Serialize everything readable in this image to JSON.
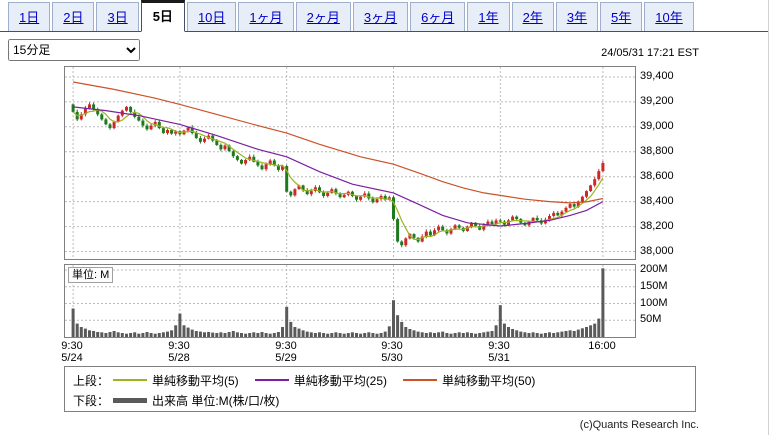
{
  "tabs": {
    "items": [
      {
        "label": "1日",
        "selected": false
      },
      {
        "label": "2日",
        "selected": false
      },
      {
        "label": "3日",
        "selected": false
      },
      {
        "label": "5日",
        "selected": true
      },
      {
        "label": "10日",
        "selected": false
      },
      {
        "label": "1ヶ月",
        "selected": false
      },
      {
        "label": "2ヶ月",
        "selected": false
      },
      {
        "label": "3ヶ月",
        "selected": false
      },
      {
        "label": "6ヶ月",
        "selected": false
      },
      {
        "label": "1年",
        "selected": false
      },
      {
        "label": "2年",
        "selected": false
      },
      {
        "label": "3年",
        "selected": false
      },
      {
        "label": "5年",
        "selected": false
      },
      {
        "label": "10年",
        "selected": false
      }
    ]
  },
  "controls": {
    "timeframe_value": "15分足"
  },
  "timestamp": "24/05/31 17:21 EST",
  "copyright": "(c)Quants Research Inc.",
  "legend": {
    "upper_prefix": "上段：",
    "lower_prefix": "下段：",
    "ma_labels": [
      "単純移動平均(5)",
      "単純移動平均(25)",
      "単純移動平均(50)"
    ],
    "volume_label": "出来高 単位:M(株/口/枚)"
  },
  "chart_data": {
    "type": "candlestick_with_volume",
    "timeframe": "15分足",
    "unit_label": "単位: M",
    "y_axis": {
      "min": 37940,
      "max": 39480,
      "ticks": [
        {
          "value": 39400,
          "label": "39,400"
        },
        {
          "value": 39200,
          "label": "39,200"
        },
        {
          "value": 39000,
          "label": "39,000"
        },
        {
          "value": 38800,
          "label": "38,800"
        },
        {
          "value": 38600,
          "label": "38,600"
        },
        {
          "value": 38400,
          "label": "38,400"
        },
        {
          "value": 38200,
          "label": "38,200"
        },
        {
          "value": 38000,
          "label": "38,000"
        }
      ]
    },
    "volume_axis": {
      "max": 215,
      "ticks": [
        {
          "value": 200,
          "label": "200M"
        },
        {
          "value": 150,
          "label": "150M"
        },
        {
          "value": 100,
          "label": "100M"
        },
        {
          "value": 50,
          "label": "50M"
        }
      ]
    },
    "x_labels": [
      {
        "index": 0,
        "time": "9:30",
        "date": "5/24"
      },
      {
        "index": 26,
        "time": "9:30",
        "date": "5/28"
      },
      {
        "index": 52,
        "time": "9:30",
        "date": "5/29"
      },
      {
        "index": 78,
        "time": "9:30",
        "date": "5/30"
      },
      {
        "index": 104,
        "time": "9:30",
        "date": "5/31"
      },
      {
        "index": 129,
        "time": "16:00",
        "date": ""
      }
    ],
    "day_start_indices": [
      0,
      26,
      52,
      78,
      104
    ],
    "candle_colors": {
      "up": "#cc2a2a",
      "down": "#1f7a1f"
    },
    "volume_color": "#5a5a5a",
    "first_open": 39180,
    "closes": [
      39120,
      39060,
      39100,
      39150,
      39180,
      39140,
      39100,
      39060,
      39020,
      38990,
      39040,
      39090,
      39130,
      39160,
      39120,
      39080,
      39050,
      39010,
      38980,
      39010,
      39040,
      38990,
      38950,
      38975,
      38945,
      38965,
      38940,
      38970,
      38995,
      38950,
      38910,
      38880,
      38905,
      38930,
      38890,
      38855,
      38820,
      38850,
      38805,
      38765,
      38735,
      38705,
      38735,
      38760,
      38720,
      38690,
      38660,
      38700,
      38730,
      38690,
      38655,
      38685,
      38480,
      38450,
      38500,
      38530,
      38490,
      38460,
      38485,
      38515,
      38475,
      38445,
      38470,
      38500,
      38465,
      38435,
      38455,
      38480,
      38445,
      38415,
      38440,
      38465,
      38425,
      38395,
      38420,
      38445,
      38415,
      38435,
      38260,
      38080,
      38050,
      38105,
      38140,
      38110,
      38080,
      38120,
      38160,
      38130,
      38170,
      38200,
      38170,
      38145,
      38180,
      38210,
      38190,
      38165,
      38200,
      38230,
      38205,
      38175,
      38210,
      38240,
      38220,
      38250,
      38240,
      38215,
      38250,
      38280,
      38260,
      38230,
      38210,
      38240,
      38270,
      38250,
      38225,
      38255,
      38285,
      38310,
      38290,
      38320,
      38350,
      38380,
      38360,
      38400,
      38440,
      38485,
      38530,
      38580,
      38645,
      38710
    ],
    "volumes": [
      85,
      40,
      30,
      25,
      20,
      18,
      15,
      14,
      12,
      15,
      18,
      14,
      12,
      10,
      12,
      14,
      10,
      12,
      15,
      12,
      10,
      12,
      14,
      16,
      20,
      35,
      70,
      35,
      28,
      22,
      18,
      16,
      14,
      15,
      13,
      12,
      14,
      12,
      15,
      18,
      14,
      12,
      10,
      12,
      14,
      12,
      15,
      12,
      10,
      12,
      15,
      30,
      90,
      45,
      30,
      25,
      20,
      16,
      14,
      12,
      14,
      12,
      10,
      12,
      14,
      12,
      10,
      12,
      14,
      12,
      10,
      12,
      14,
      12,
      10,
      12,
      16,
      32,
      110,
      65,
      45,
      30,
      24,
      20,
      16,
      14,
      12,
      14,
      12,
      14,
      16,
      12,
      10,
      12,
      14,
      12,
      14,
      12,
      10,
      12,
      14,
      16,
      18,
      35,
      95,
      40,
      30,
      24,
      20,
      16,
      14,
      12,
      14,
      12,
      10,
      12,
      14,
      12,
      14,
      16,
      18,
      20,
      18,
      22,
      26,
      30,
      35,
      40,
      55,
      205
    ],
    "ma_overlays": [
      {
        "label": "単純移動平均(5)",
        "period": 5,
        "color": "#9ab520",
        "source": "sma_of_closes"
      },
      {
        "label": "単純移動平均(25)",
        "period": 25,
        "color": "#7b1fa2",
        "points": [
          [
            0,
            39160
          ],
          [
            8,
            39130
          ],
          [
            16,
            39090
          ],
          [
            26,
            39020
          ],
          [
            35,
            38930
          ],
          [
            45,
            38820
          ],
          [
            52,
            38760
          ],
          [
            60,
            38640
          ],
          [
            68,
            38540
          ],
          [
            78,
            38470
          ],
          [
            84,
            38380
          ],
          [
            90,
            38290
          ],
          [
            96,
            38230
          ],
          [
            104,
            38205
          ],
          [
            110,
            38225
          ],
          [
            116,
            38250
          ],
          [
            121,
            38290
          ],
          [
            125,
            38330
          ],
          [
            129,
            38400
          ]
        ]
      },
      {
        "label": "単純移動平均(50)",
        "period": 50,
        "color": "#cc5228",
        "points": [
          [
            0,
            39360
          ],
          [
            10,
            39300
          ],
          [
            20,
            39230
          ],
          [
            26,
            39180
          ],
          [
            35,
            39100
          ],
          [
            45,
            39010
          ],
          [
            52,
            38950
          ],
          [
            60,
            38860
          ],
          [
            70,
            38760
          ],
          [
            78,
            38700
          ],
          [
            85,
            38620
          ],
          [
            90,
            38560
          ],
          [
            95,
            38510
          ],
          [
            100,
            38470
          ],
          [
            104,
            38450
          ],
          [
            110,
            38420
          ],
          [
            116,
            38400
          ],
          [
            121,
            38390
          ],
          [
            125,
            38398
          ],
          [
            129,
            38425
          ]
        ]
      }
    ]
  }
}
